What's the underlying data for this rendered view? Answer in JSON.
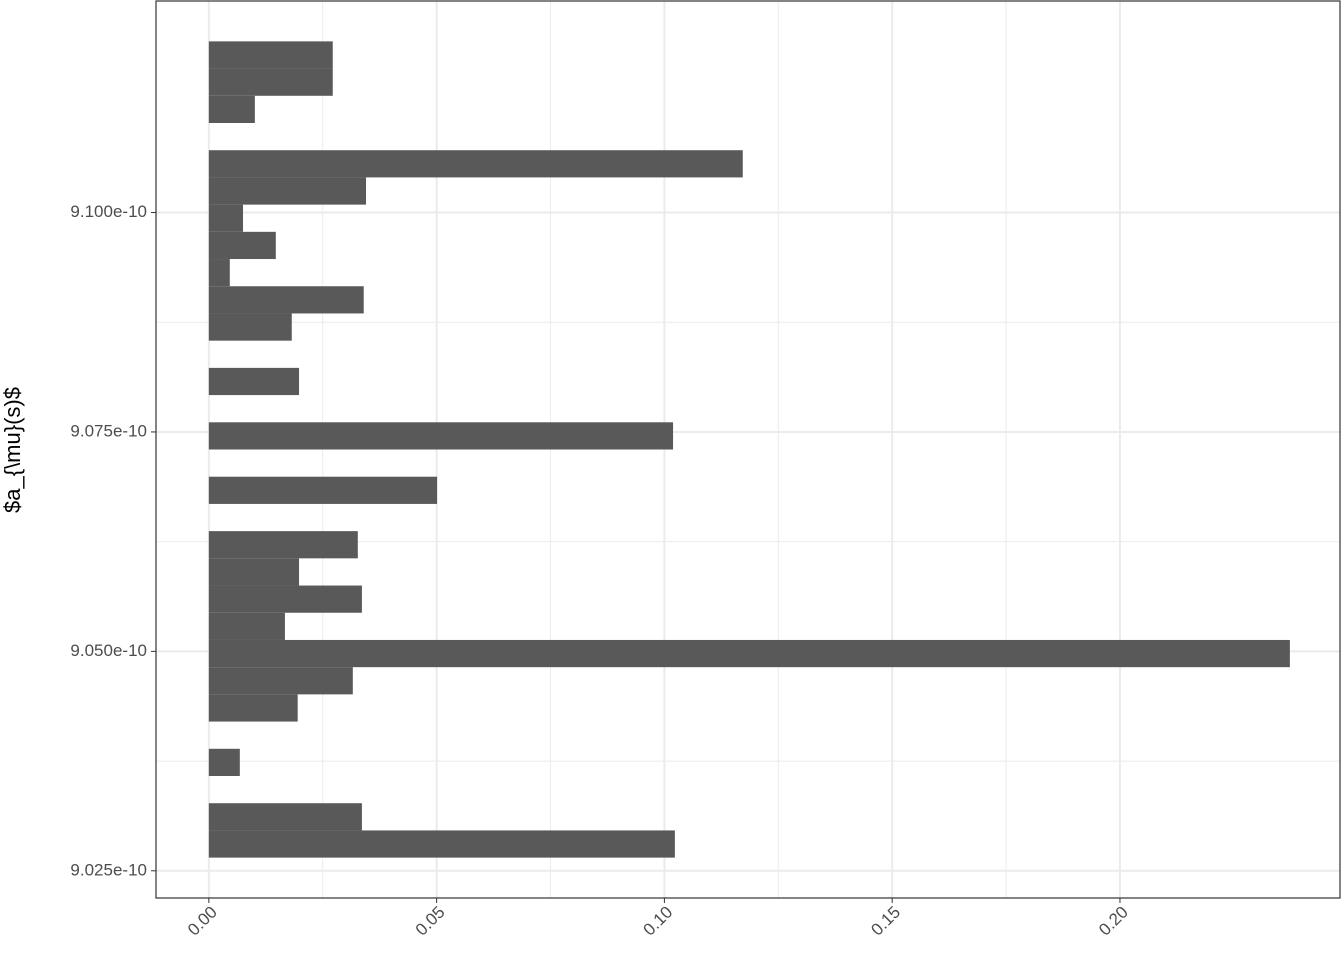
{
  "chart_data": {
    "type": "histogram",
    "orientation": "horizontal",
    "y_label": "$a_{\\mu}(s)$",
    "color": "#595959",
    "grid": true,
    "bins": [
      9.0265e-10,
      9.0296e-10,
      9.0327e-10,
      9.0358e-10,
      9.0389e-10,
      9.042e-10,
      9.0451e-10,
      9.0482e-10,
      9.0513e-10,
      9.0544e-10,
      9.0575e-10,
      9.0606e-10,
      9.0637e-10,
      9.0668e-10,
      9.0699e-10,
      9.073e-10,
      9.0761e-10,
      9.0792e-10,
      9.0823e-10,
      9.0854e-10,
      9.0885e-10,
      9.0916e-10,
      9.0947e-10,
      9.0978e-10,
      9.1009e-10,
      9.104e-10,
      9.1071e-10,
      9.1102e-10,
      9.1133e-10,
      9.1164e-10,
      9.1195e-10
    ],
    "values": [
      0.1023,
      0.0336,
      0,
      0.0068,
      0,
      0.0195,
      0.0316,
      0.2373,
      0.0167,
      0.0336,
      0.0198,
      0.0327,
      0,
      0.0501,
      0,
      0.1019,
      0,
      0.0198,
      0,
      0.0182,
      0.034,
      0.0046,
      0.0147,
      0.0075,
      0.0345,
      0.1172,
      0,
      0.0101,
      0.0272,
      0.0272
    ],
    "xlim": [
      -0.0116,
      0.2483
    ],
    "xticks": [
      {
        "value": 0,
        "label": "0.00"
      },
      {
        "value": 0.05,
        "label": "0.05"
      },
      {
        "value": 0.1,
        "label": "0.10"
      },
      {
        "value": 0.15,
        "label": "0.15"
      },
      {
        "value": 0.2,
        "label": "0.20"
      }
    ],
    "ylim": [
      9.0219e-10,
      9.1241e-10
    ],
    "yticks": [
      {
        "value": 9.025e-10,
        "label": "9.025e-10"
      },
      {
        "value": 9.05e-10,
        "label": "9.050e-10"
      },
      {
        "value": 9.075e-10,
        "label": "9.075e-10"
      },
      {
        "value": 9.1e-10,
        "label": "9.100e-10"
      }
    ]
  }
}
